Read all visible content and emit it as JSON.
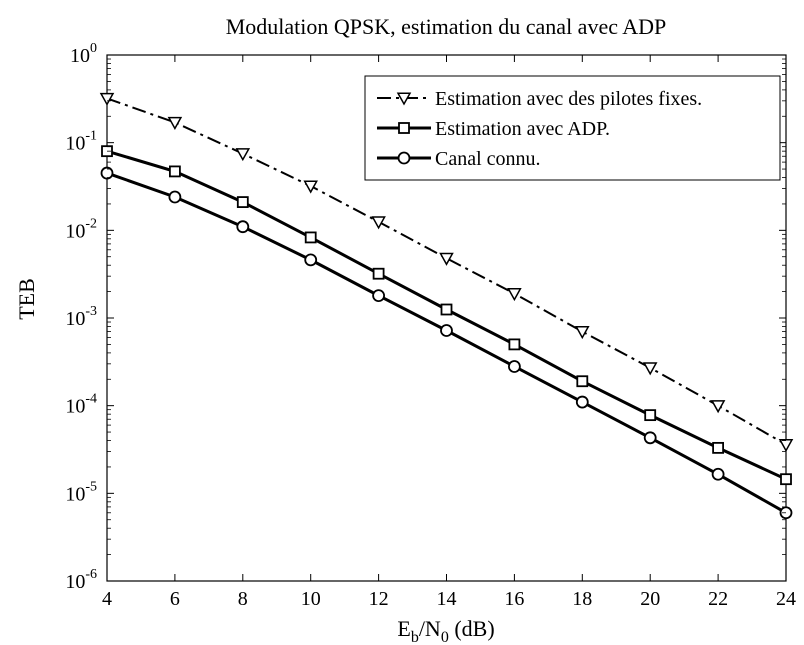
{
  "chart_data": {
    "type": "line",
    "title": "Modulation QPSK, estimation du canal avec ADP",
    "ylabel": "TEB",
    "xlabel": {
      "main": "E",
      "sub1": "b",
      "mid": "/N",
      "sub2": "0",
      "unit": " (dB)"
    },
    "xlim": [
      4,
      24
    ],
    "ylim": [
      1e-06,
      1
    ],
    "yscale": "log",
    "xticks": [
      4,
      6,
      8,
      10,
      12,
      14,
      16,
      18,
      20,
      22,
      24
    ],
    "yticks": [
      {
        "value": 1,
        "base": "10",
        "exp": "0"
      },
      {
        "value": 0.1,
        "base": "10",
        "exp": "-1"
      },
      {
        "value": 0.01,
        "base": "10",
        "exp": "-2"
      },
      {
        "value": 0.001,
        "base": "10",
        "exp": "-3"
      },
      {
        "value": 0.0001,
        "base": "10",
        "exp": "-4"
      },
      {
        "value": 1e-05,
        "base": "10",
        "exp": "-5"
      },
      {
        "value": 1e-06,
        "base": "10",
        "exp": "-6"
      }
    ],
    "grid": false,
    "legend_position": "top-right",
    "x": [
      4,
      6,
      8,
      10,
      12,
      14,
      16,
      18,
      20,
      22,
      24
    ],
    "series": [
      {
        "name": "Estimation avec des pilotes fixes.",
        "marker": "triangle-down",
        "line_style": "dash-dot",
        "color": "#000000",
        "values": [
          0.32,
          0.17,
          0.075,
          0.032,
          0.0125,
          0.0048,
          0.0019,
          0.0007,
          0.00027,
          0.0001,
          3.6e-05
        ]
      },
      {
        "name": "Estimation avec ADP.",
        "marker": "square",
        "line_style": "solid",
        "color": "#000000",
        "values": [
          0.08,
          0.047,
          0.021,
          0.0083,
          0.0032,
          0.00125,
          0.0005,
          0.00019,
          7.8e-05,
          3.3e-05,
          1.45e-05
        ]
      },
      {
        "name": "Canal connu.",
        "marker": "circle",
        "line_style": "solid",
        "color": "#000000",
        "values": [
          0.045,
          0.024,
          0.011,
          0.0046,
          0.0018,
          0.00072,
          0.00028,
          0.00011,
          4.3e-05,
          1.65e-05,
          6e-06
        ]
      }
    ]
  }
}
